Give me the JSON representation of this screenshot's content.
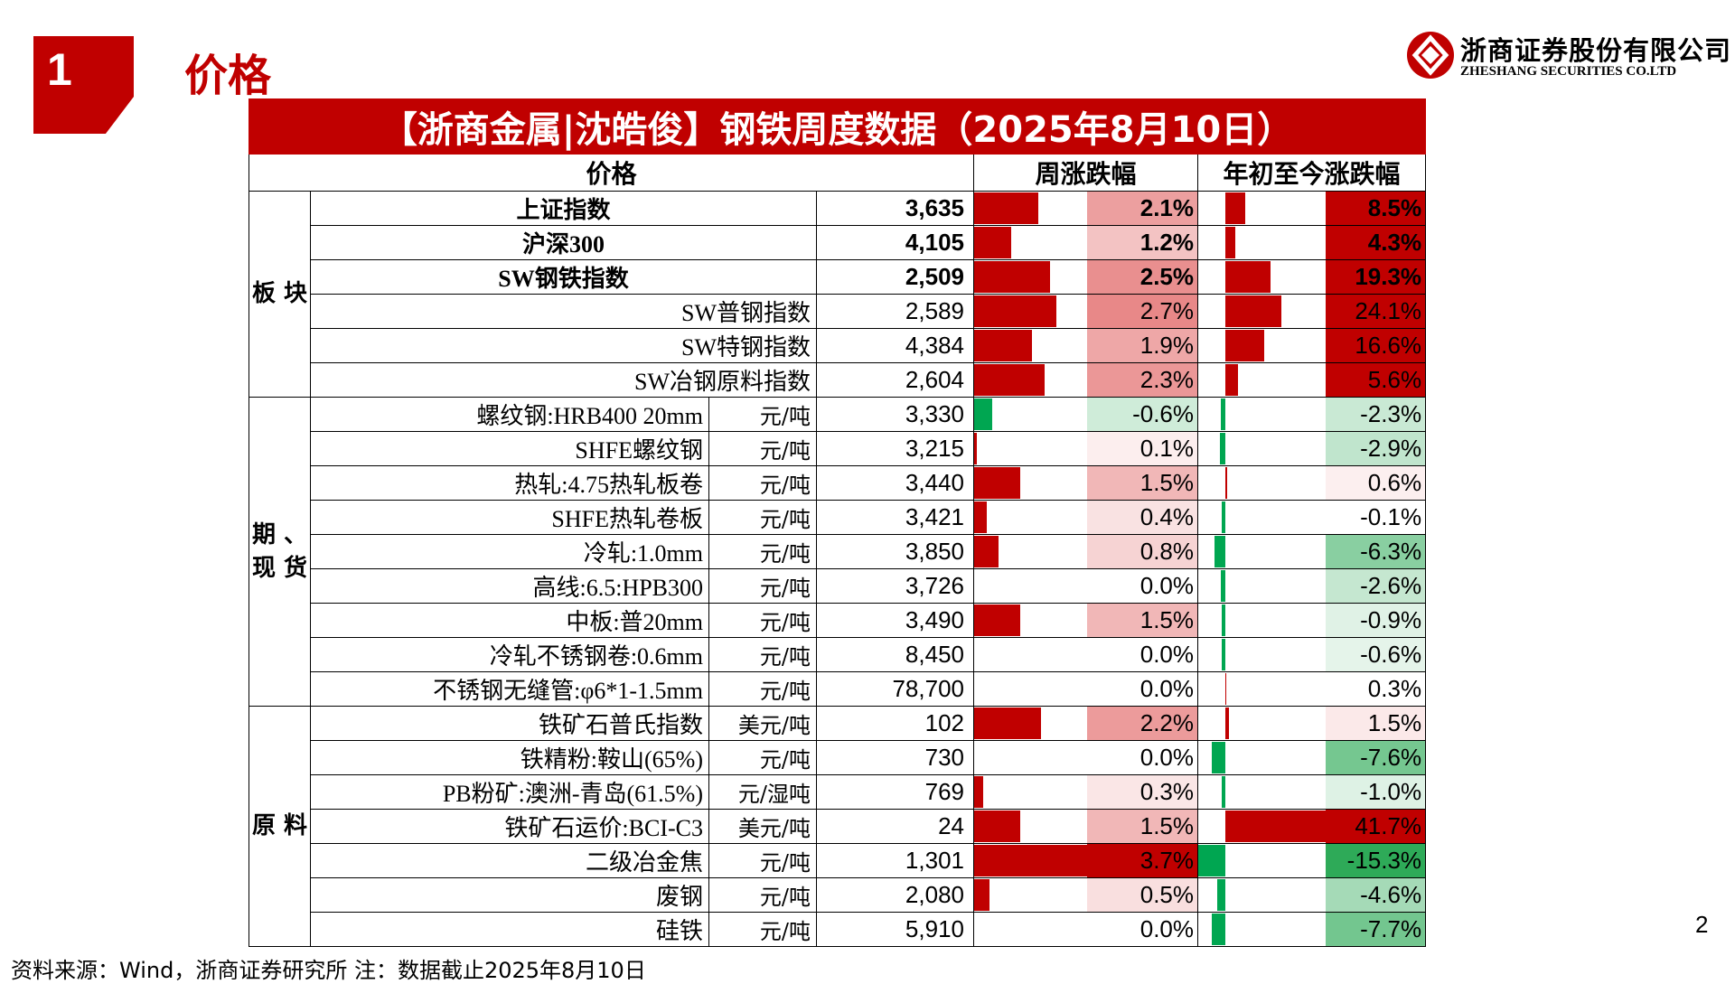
{
  "section": {
    "number": "1",
    "title": "价格"
  },
  "logo": {
    "cn": "浙商证券股份有限公司",
    "en": "ZHESHANG SECURITIES CO.LTD"
  },
  "page_number": "2",
  "footer": "资料来源：Wind，浙商证券研究所    注：数据截止2025年8月10日",
  "table": {
    "title": "【浙商金属|沈皓俊】钢铁周度数据（2025年8月10日）",
    "headers": {
      "price": "价格",
      "weekly": "周涨跌幅",
      "ytd": "年初至今涨跌幅"
    },
    "groups": [
      {
        "label": "板\n块",
        "rows": [
          {
            "name": "上证指数",
            "unit": "",
            "value": "3,635",
            "wk": "2.1%",
            "ytd": "8.5%",
            "wk_v": 2.1,
            "ytd_v": 8.5,
            "bold": true
          },
          {
            "name": "沪深300",
            "unit": "",
            "value": "4,105",
            "wk": "1.2%",
            "ytd": "4.3%",
            "wk_v": 1.2,
            "ytd_v": 4.3,
            "bold": true
          },
          {
            "name": "SW钢铁指数",
            "unit": "",
            "value": "2,509",
            "wk": "2.5%",
            "ytd": "19.3%",
            "wk_v": 2.5,
            "ytd_v": 19.3,
            "bold": true
          },
          {
            "name": "SW普钢指数",
            "unit": "",
            "value": "2,589",
            "wk": "2.7%",
            "ytd": "24.1%",
            "wk_v": 2.7,
            "ytd_v": 24.1,
            "bold": false
          },
          {
            "name": "SW特钢指数",
            "unit": "",
            "value": "4,384",
            "wk": "1.9%",
            "ytd": "16.6%",
            "wk_v": 1.9,
            "ytd_v": 16.6,
            "bold": false
          },
          {
            "name": "SW冶钢原料指数",
            "unit": "",
            "value": "2,604",
            "wk": "2.3%",
            "ytd": "5.6%",
            "wk_v": 2.3,
            "ytd_v": 5.6,
            "bold": false
          }
        ]
      },
      {
        "label": "期\n、\n现\n货",
        "rows": [
          {
            "name": "螺纹钢:HRB400 20mm",
            "unit": "元/吨",
            "value": "3,330",
            "wk": "-0.6%",
            "ytd": "-2.3%",
            "wk_v": -0.6,
            "ytd_v": -2.3
          },
          {
            "name": "SHFE螺纹钢",
            "unit": "元/吨",
            "value": "3,215",
            "wk": "0.1%",
            "ytd": "-2.9%",
            "wk_v": 0.1,
            "ytd_v": -2.9
          },
          {
            "name": "热轧:4.75热轧板卷",
            "unit": "元/吨",
            "value": "3,440",
            "wk": "1.5%",
            "ytd": "0.6%",
            "wk_v": 1.5,
            "ytd_v": 0.6
          },
          {
            "name": "SHFE热轧卷板",
            "unit": "元/吨",
            "value": "3,421",
            "wk": "0.4%",
            "ytd": "-0.1%",
            "wk_v": 0.4,
            "ytd_v": -0.1
          },
          {
            "name": "冷轧:1.0mm",
            "unit": "元/吨",
            "value": "3,850",
            "wk": "0.8%",
            "ytd": "-6.3%",
            "wk_v": 0.8,
            "ytd_v": -6.3
          },
          {
            "name": "高线:6.5:HPB300",
            "unit": "元/吨",
            "value": "3,726",
            "wk": "0.0%",
            "ytd": "-2.6%",
            "wk_v": 0.0,
            "ytd_v": -2.6
          },
          {
            "name": "中板:普20mm",
            "unit": "元/吨",
            "value": "3,490",
            "wk": "1.5%",
            "ytd": "-0.9%",
            "wk_v": 1.5,
            "ytd_v": -0.9
          },
          {
            "name": "冷轧不锈钢卷:0.6mm",
            "unit": "元/吨",
            "value": "8,450",
            "wk": "0.0%",
            "ytd": "-0.6%",
            "wk_v": 0.0,
            "ytd_v": -0.6
          },
          {
            "name": "不锈钢无缝管:φ6*1-1.5mm",
            "unit": "元/吨",
            "value": "78,700",
            "wk": "0.0%",
            "ytd": "0.3%",
            "wk_v": 0.0,
            "ytd_v": 0.3
          }
        ]
      },
      {
        "label": "原\n料",
        "rows": [
          {
            "name": "铁矿石普氏指数",
            "unit": "美元/吨",
            "value": "102",
            "wk": "2.2%",
            "ytd": "1.5%",
            "wk_v": 2.2,
            "ytd_v": 1.5
          },
          {
            "name": "铁精粉:鞍山(65%)",
            "unit": "元/吨",
            "value": "730",
            "wk": "0.0%",
            "ytd": "-7.6%",
            "wk_v": 0.0,
            "ytd_v": -7.6
          },
          {
            "name": "PB粉矿:澳洲-青岛(61.5%)",
            "unit": "元/湿吨",
            "value": "769",
            "wk": "0.3%",
            "ytd": "-1.0%",
            "wk_v": 0.3,
            "ytd_v": -1.0
          },
          {
            "name": "铁矿石运价:BCI-C3",
            "unit": "美元/吨",
            "value": "24",
            "wk": "1.5%",
            "ytd": "41.7%",
            "wk_v": 1.5,
            "ytd_v": 41.7
          },
          {
            "name": "二级冶金焦",
            "unit": "元/吨",
            "value": "1,301",
            "wk": "3.7%",
            "ytd": "-15.3%",
            "wk_v": 3.7,
            "ytd_v": -15.3
          },
          {
            "name": "废钢",
            "unit": "元/吨",
            "value": "2,080",
            "wk": "0.5%",
            "ytd": "-4.6%",
            "wk_v": 0.5,
            "ytd_v": -4.6
          },
          {
            "name": "硅铁",
            "unit": "元/吨",
            "value": "5,910",
            "wk": "0.0%",
            "ytd": "-7.7%",
            "wk_v": 0.0,
            "ytd_v": -7.7
          }
        ]
      }
    ]
  },
  "colors": {
    "brand_red": "#c00000",
    "pos_bar": "#c00000",
    "neg_bar": "#00a651",
    "pos_cell": "#e06060",
    "neg_cell": "#2eaa58"
  }
}
